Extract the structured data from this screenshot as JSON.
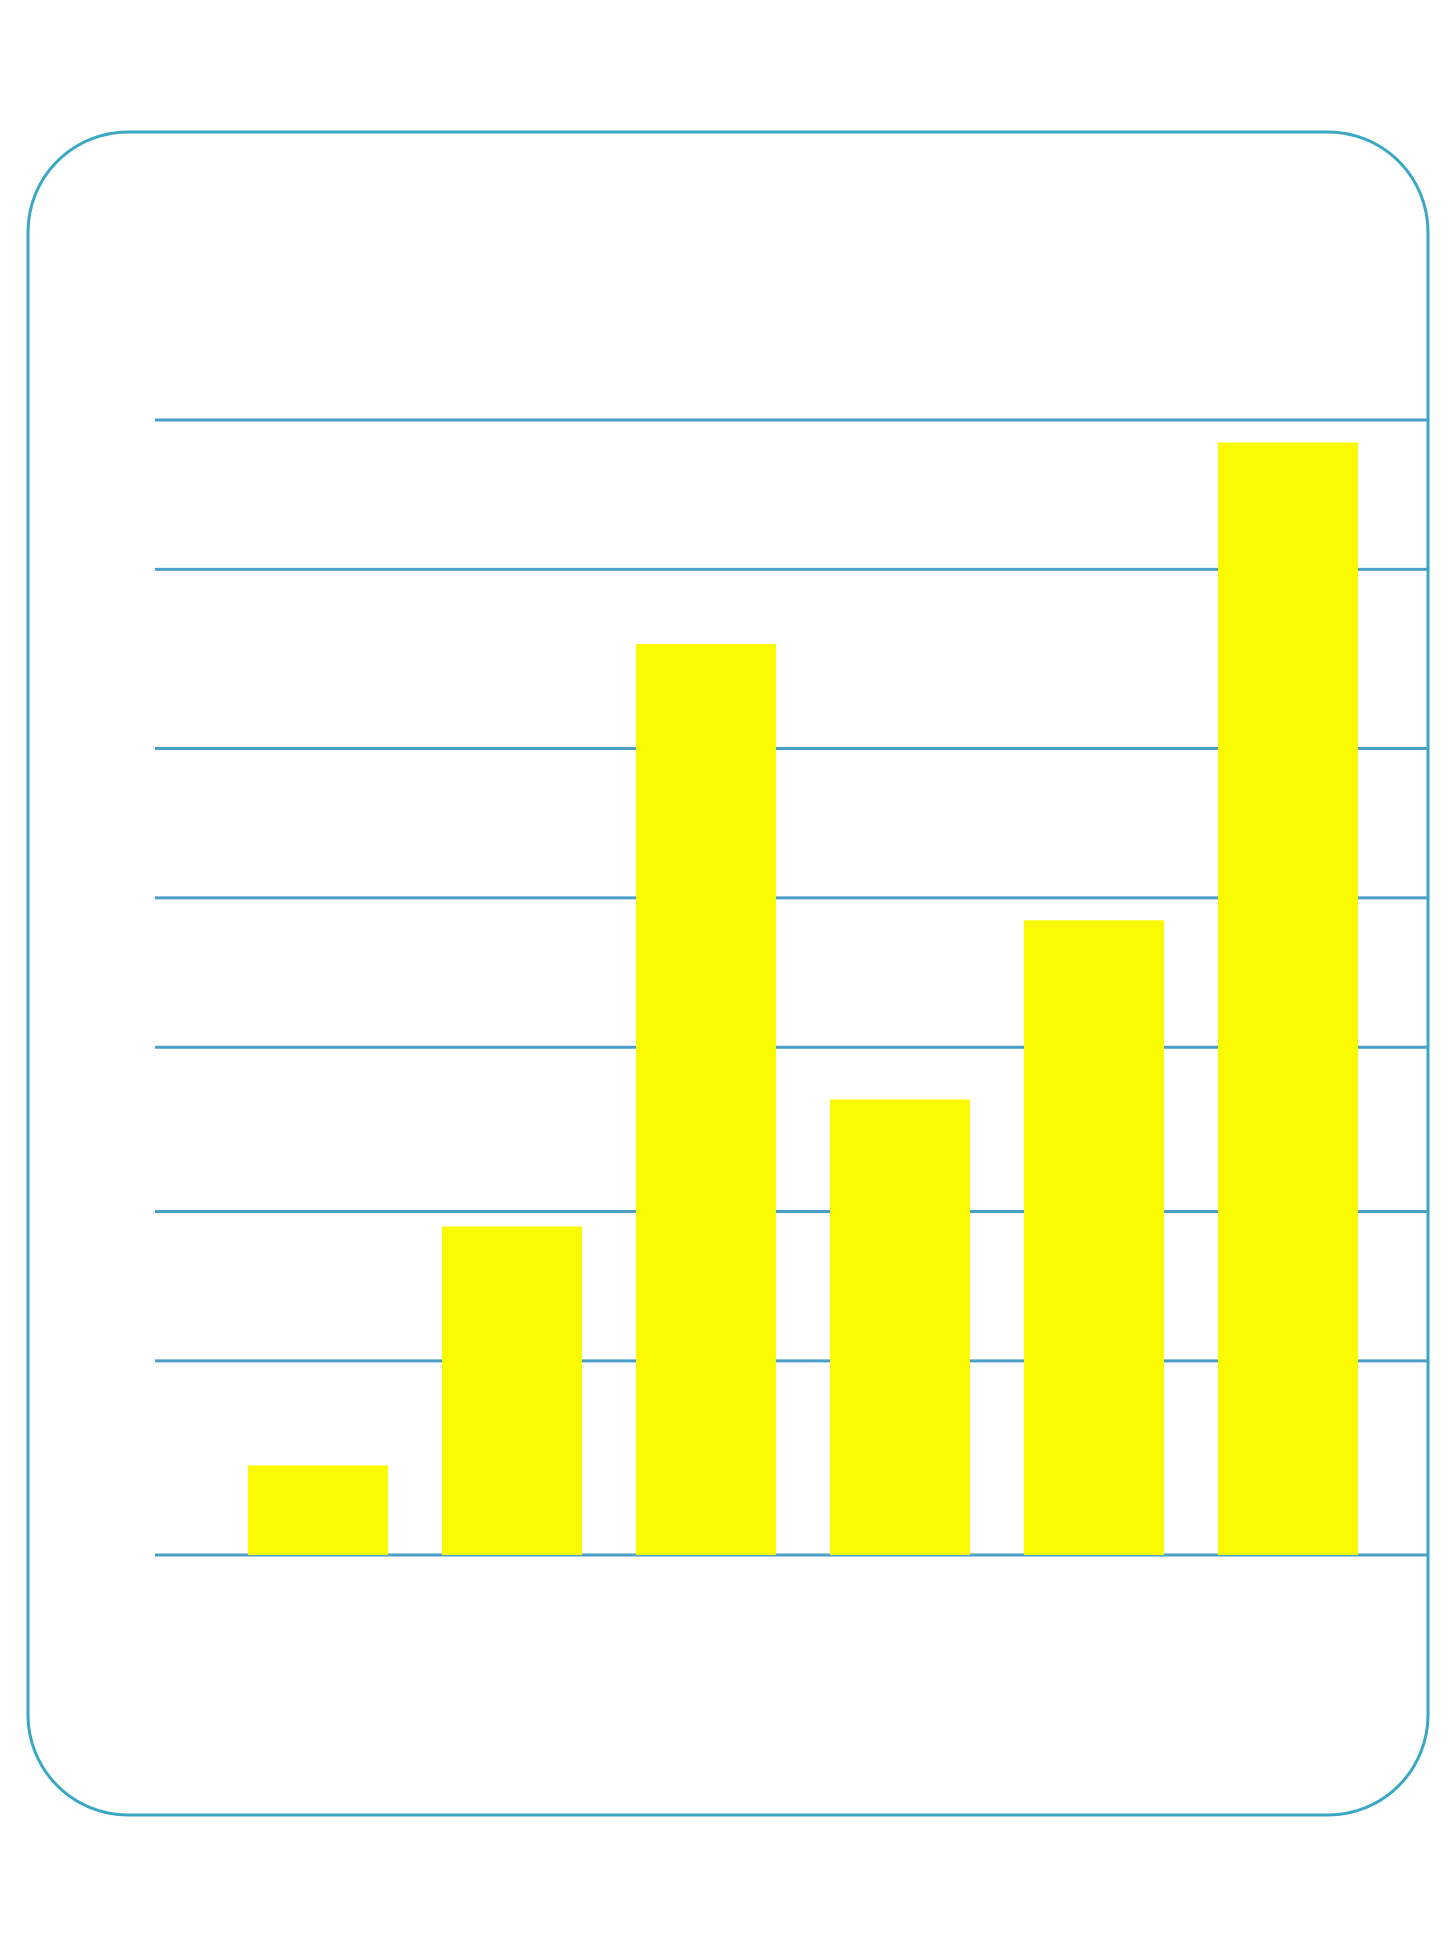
{
  "colors": {
    "frame": "#3aa8c4",
    "grid": "#4a9fc9",
    "bar": "#fafa00",
    "background": "#ffffff"
  },
  "chart_data": {
    "type": "bar",
    "title": "",
    "xlabel": "",
    "ylabel": "",
    "categories": [
      "",
      "",
      "",
      "",
      "",
      ""
    ],
    "values": [
      0.6,
      2.2,
      6.1,
      3.05,
      4.25,
      7.45
    ],
    "ylim": [
      0,
      7.6
    ],
    "gridlines": [
      0,
      1.3,
      2.3,
      3.4,
      4.4,
      5.4,
      6.6,
      7.6
    ],
    "grid": true,
    "legend": "none"
  }
}
